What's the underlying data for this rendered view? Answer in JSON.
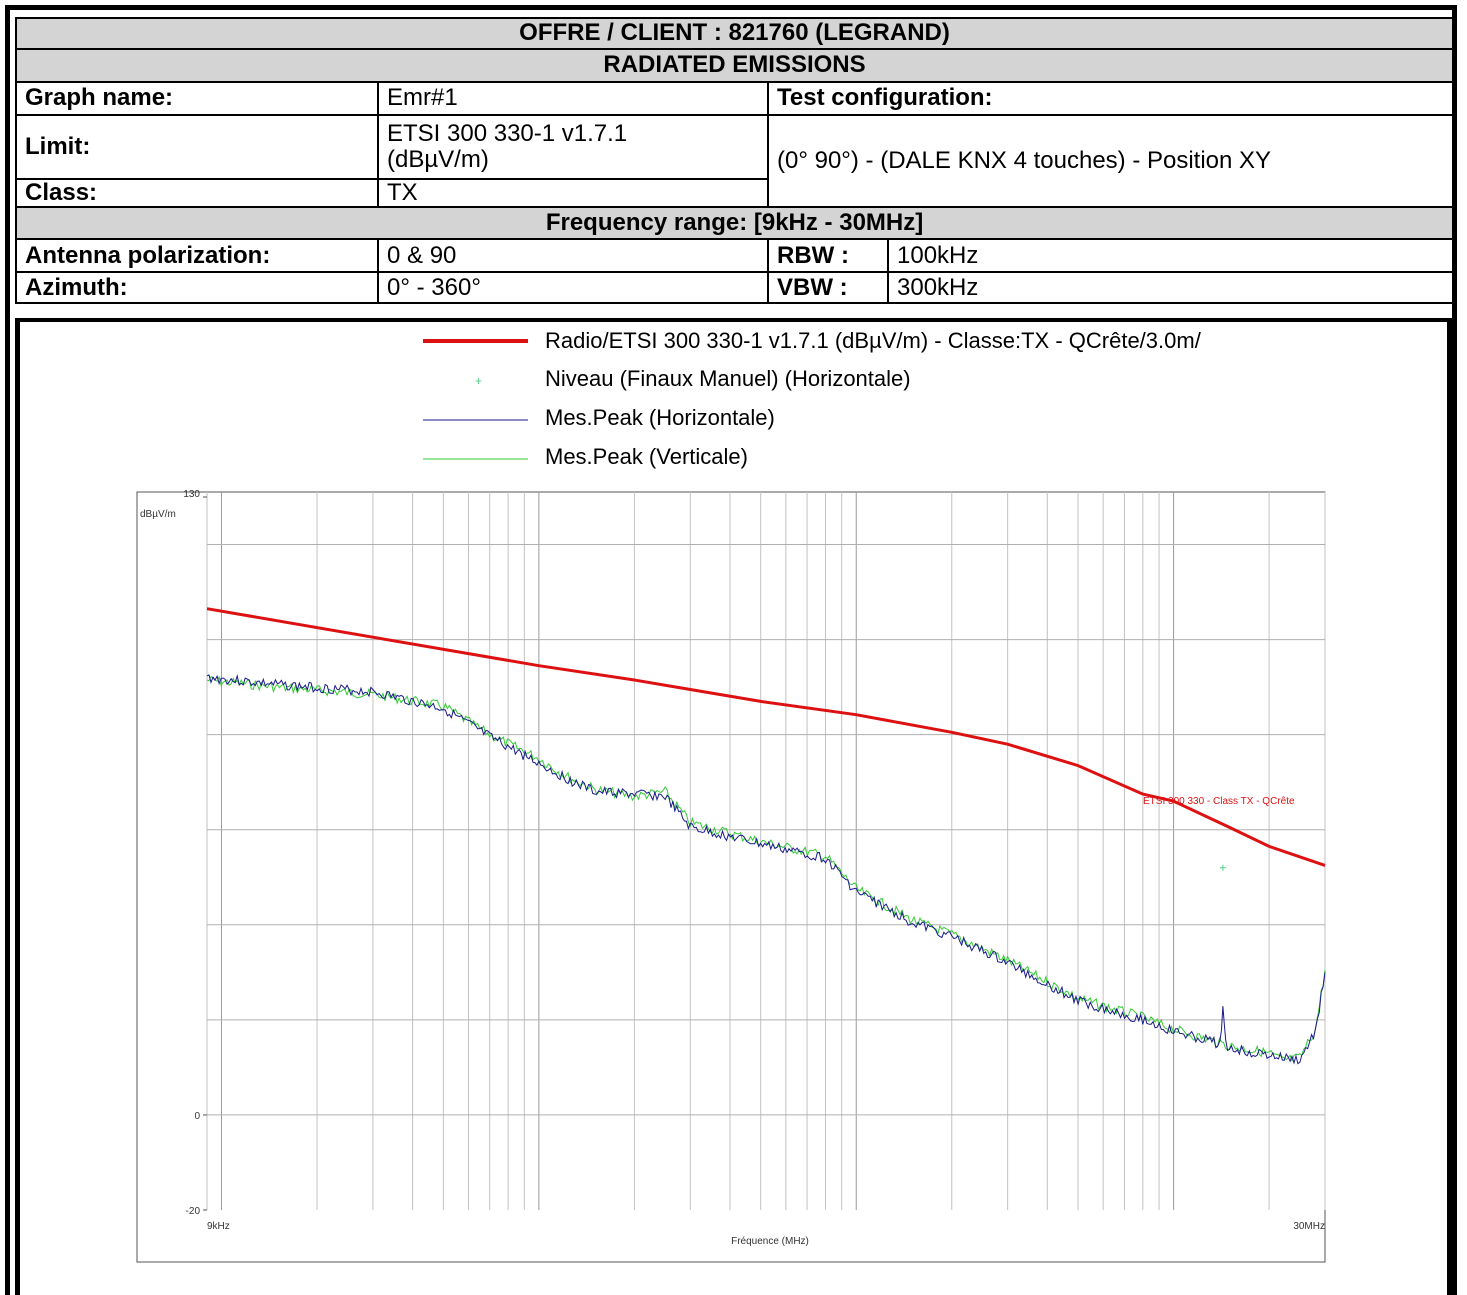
{
  "header": {
    "title": "OFFRE / CLIENT : 821760 (LEGRAND)",
    "subtitle": "RADIATED EMISSIONS",
    "graph_name_label": "Graph name:",
    "graph_name_value": "Emr#1",
    "test_config_label": "Test configuration:",
    "limit_label": "Limit:",
    "limit_value_line1": "ETSI 300 330-1 v1.7.1",
    "limit_value_line2": "(dBµV/m)",
    "class_label": "Class:",
    "class_value": "TX",
    "test_config_value": "(0° 90°) - (DALE KNX 4 touches) - Position XY",
    "freq_range": "Frequency range:  [9kHz - 30MHz]",
    "antenna_label": "Antenna polarization:",
    "antenna_value": "0 & 90",
    "rbw_label": "RBW :",
    "rbw_value": "100kHz",
    "azimuth_label": "Azimuth:",
    "azimuth_value": "0° - 360°",
    "vbw_label": "VBW :",
    "vbw_value": "300kHz"
  },
  "chart_data": {
    "type": "line",
    "ylabel": "dBµV/m",
    "xlabel": "Fréquence (MHz)",
    "x_scale": "log",
    "y_ticks": [
      {
        "value": 130,
        "label": "130"
      },
      {
        "value": 0,
        "label": "0"
      },
      {
        "value": -20,
        "label": "-20"
      }
    ],
    "x_ticks": [
      {
        "value": 0.009,
        "label": "9kHz"
      },
      {
        "value": 30,
        "label": "30MHz"
      }
    ],
    "xlim": [
      0.009,
      30
    ],
    "ylim": [
      -20,
      130
    ],
    "grid": true,
    "legend": [
      {
        "name": "Radio/ETSI 300 330-1 v1.7.1 (dBµV/m) - Classe:TX - QCrête/3.0m/",
        "color": "#dd1111",
        "style": "thick-line"
      },
      {
        "name": "Niveau (Finaux Manuel) (Horizontale)",
        "color": "#55cc88",
        "style": "cross-marker"
      },
      {
        "name": "Mes.Peak (Horizontale)",
        "color": "#1a1a8c",
        "style": "line"
      },
      {
        "name": "Mes.Peak (Verticale)",
        "color": "#33cc33",
        "style": "line"
      }
    ],
    "limit_annotation": "ETSI 300 330 - Class TX - QCrête",
    "series": [
      {
        "name": "Radio/ETSI 300 330-1 v1.7.1 (dBµV/m) - Classe:TX - QCrête/3.0m/",
        "color": "#dd1111",
        "x": [
          0.009,
          0.03,
          0.1,
          0.2,
          0.3,
          0.5,
          1.0,
          2.0,
          3.0,
          5.0,
          8.0,
          10.0,
          15.0,
          20.0,
          30.0
        ],
        "y": [
          106.5,
          100.5,
          94.5,
          91.5,
          89.5,
          87.0,
          84.2,
          80.5,
          78.0,
          73.5,
          67.5,
          66.0,
          60.5,
          56.5,
          52.5
        ]
      },
      {
        "name": "Mes.Peak (Horizontale)",
        "color": "#1a1a8c",
        "x": [
          0.009,
          0.015,
          0.03,
          0.05,
          0.07,
          0.1,
          0.12,
          0.15,
          0.2,
          0.25,
          0.3,
          0.5,
          0.8,
          1.0,
          1.5,
          2.0,
          3.0,
          5.0,
          8.0,
          10.0,
          14.0,
          14.3,
          14.6,
          15.0,
          20.0,
          22.0,
          25.0,
          28.0,
          30.0
        ],
        "y": [
          92.0,
          90.5,
          89.0,
          85.5,
          79.5,
          74.0,
          71.0,
          68.0,
          67.5,
          67.0,
          60.5,
          57.0,
          54.0,
          47.0,
          40.5,
          37.5,
          32.0,
          24.0,
          20.0,
          17.5,
          15.0,
          22.0,
          15.0,
          14.0,
          12.5,
          12.0,
          11.5,
          17.5,
          30.0
        ]
      },
      {
        "name": "Mes.Peak (Verticale)",
        "color": "#33cc33",
        "x": [
          0.009,
          0.015,
          0.03,
          0.05,
          0.07,
          0.1,
          0.12,
          0.15,
          0.2,
          0.25,
          0.3,
          0.5,
          0.8,
          1.0,
          1.5,
          2.0,
          3.0,
          5.0,
          8.0,
          10.0,
          15.0,
          20.0,
          22.0,
          25.0,
          28.0,
          30.0
        ],
        "y": [
          91.5,
          90.0,
          88.5,
          86.0,
          80.0,
          75.0,
          71.5,
          68.5,
          67.0,
          68.0,
          61.5,
          57.5,
          54.5,
          47.5,
          41.0,
          38.0,
          32.5,
          24.5,
          20.5,
          18.0,
          14.5,
          13.0,
          11.5,
          12.0,
          18.0,
          30.5
        ]
      }
    ],
    "markers": [
      {
        "series": "Niveau (Finaux Manuel) (Horizontale)",
        "x": 14.3,
        "y": 52.0
      }
    ]
  }
}
